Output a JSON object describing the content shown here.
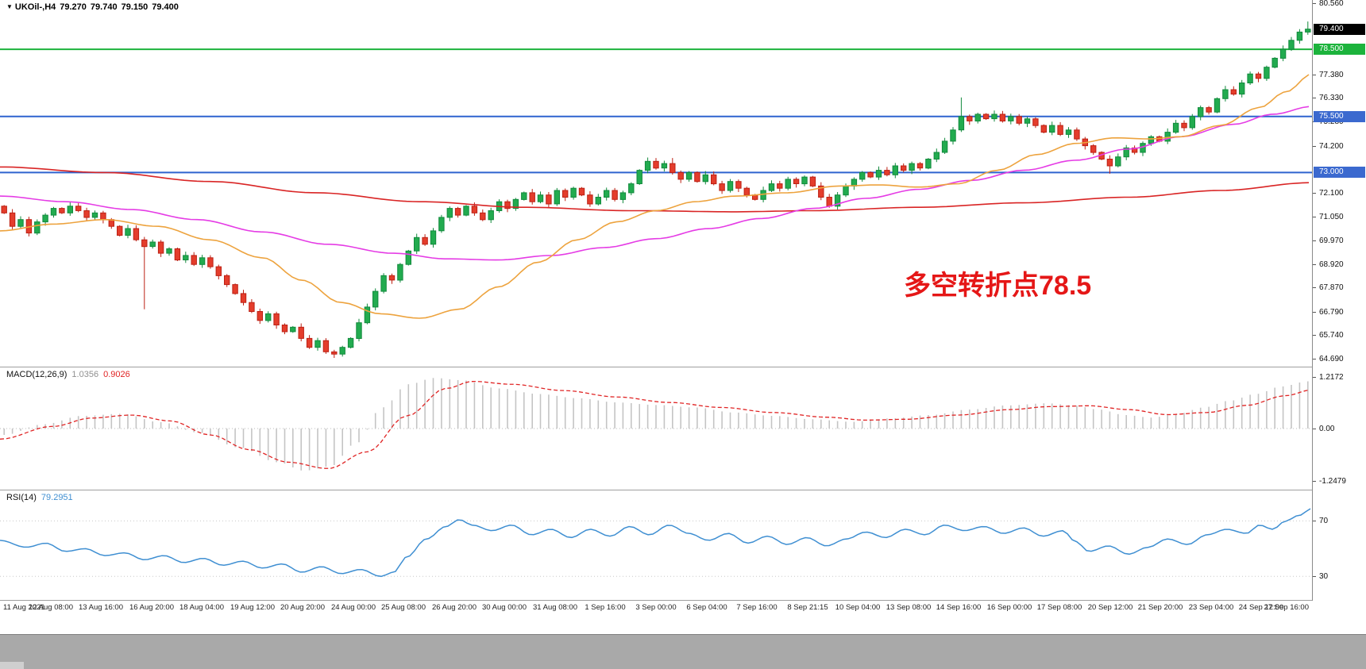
{
  "icons": {
    "symbol_dropdown": "▼"
  },
  "quote_bar": {
    "symbol_period": "UKOil-,H4",
    "open": "79.270",
    "high": "79.740",
    "low": "79.150",
    "close": "79.400"
  },
  "annotation": {
    "text": "多空转折点78.5"
  },
  "colors": {
    "background": "#ffffff",
    "bull": "#128a3c",
    "bull_fill": "#22ab4f",
    "bear": "#bc2013",
    "bear_fill": "#e43d2c",
    "hline_green": "#1cb33c",
    "hline_blue": "#2e63cf",
    "label_black_bg": "#000000",
    "label_green_bg": "#1cb33c",
    "label_blue_bg": "#3b69cf",
    "ma_fast": "#eda33e",
    "ma_mid": "#e53ce5",
    "ma_slow": "#d92525",
    "macd_hist": "#c4c4c4",
    "macd_signal": "#e02424",
    "rsi_line": "#3f8fd2",
    "axis_text": "#111111",
    "annotation": "#e51717"
  },
  "chart_data": [
    {
      "type": "candlestick",
      "title": "UKOil-,H4",
      "ylim": [
        64.34,
        80.7
      ],
      "first_open": 71.5,
      "closes": [
        71.2,
        70.6,
        70.9,
        70.3,
        70.8,
        71.1,
        71.4,
        71.2,
        71.5,
        71.3,
        71.0,
        71.2,
        70.9,
        70.6,
        70.2,
        70.5,
        70.0,
        69.7,
        69.9,
        69.4,
        69.6,
        69.1,
        69.3,
        68.9,
        69.2,
        68.8,
        68.4,
        68.0,
        67.6,
        67.2,
        66.8,
        66.4,
        66.7,
        66.2,
        65.9,
        66.1,
        65.6,
        65.2,
        65.5,
        65.0,
        64.9,
        65.2,
        65.6,
        66.3,
        67.0,
        67.7,
        68.4,
        68.2,
        68.9,
        69.5,
        70.1,
        69.8,
        70.4,
        71.0,
        71.4,
        71.1,
        71.5,
        71.2,
        70.9,
        71.3,
        71.7,
        71.4,
        71.8,
        72.1,
        71.7,
        72.0,
        71.6,
        72.2,
        71.9,
        72.3,
        72.0,
        71.6,
        71.9,
        72.2,
        71.8,
        72.1,
        72.5,
        73.1,
        73.5,
        73.2,
        73.4,
        73.0,
        72.7,
        73.0,
        72.6,
        72.9,
        72.5,
        72.2,
        72.6,
        72.3,
        72.0,
        71.8,
        72.2,
        72.5,
        72.3,
        72.7,
        72.5,
        72.8,
        72.4,
        71.9,
        71.5,
        72.0,
        72.4,
        72.7,
        73.0,
        72.8,
        73.1,
        72.9,
        73.3,
        73.1,
        73.4,
        73.2,
        73.6,
        73.9,
        74.4,
        74.9,
        75.5,
        75.3,
        75.6,
        75.4,
        75.6,
        75.3,
        75.5,
        75.2,
        75.4,
        75.1,
        74.8,
        75.1,
        74.7,
        74.9,
        74.5,
        74.2,
        73.9,
        73.6,
        73.3,
        73.7,
        74.1,
        73.9,
        74.3,
        74.6,
        74.4,
        74.8,
        75.2,
        75.0,
        75.5,
        75.9,
        75.7,
        76.3,
        76.7,
        76.5,
        77.0,
        77.4,
        77.2,
        77.7,
        78.1,
        78.5,
        78.9,
        79.27,
        79.4
      ],
      "last_bar": [
        79.27,
        79.74,
        79.15,
        79.4
      ],
      "wick_overrides": {
        "17": [
          null,
          66.9
        ],
        "81": [
          73.65,
          null
        ],
        "116": [
          76.35,
          null
        ],
        "134": [
          null,
          72.95
        ]
      },
      "x_labels": [
        "11 Aug 2021",
        "12 Aug 08:00",
        "13 Aug 16:00",
        "16 Aug 20:00",
        "18 Aug 04:00",
        "19 Aug 12:00",
        "20 Aug 20:00",
        "24 Aug 00:00",
        "25 Aug 08:00",
        "26 Aug 20:00",
        "30 Aug 00:00",
        "31 Aug 08:00",
        "1 Sep 16:00",
        "3 Sep 00:00",
        "6 Sep 04:00",
        "7 Sep 16:00",
        "8 Sep 21:15",
        "10 Sep 04:00",
        "13 Sep 08:00",
        "14 Sep 16:00",
        "16 Sep 00:00",
        "17 Sep 08:00",
        "20 Sep 12:00",
        "21 Sep 20:00",
        "23 Sep 04:00",
        "24 Sep 12:00",
        "27 Sep 16:00"
      ],
      "y_ticks": [
        [
          80.56,
          "80.560"
        ],
        [
          77.38,
          "77.380"
        ],
        [
          76.33,
          "76.330"
        ],
        [
          75.28,
          "75.280"
        ],
        [
          74.2,
          "74.200"
        ],
        [
          72.1,
          "72.100"
        ],
        [
          71.05,
          "71.050"
        ],
        [
          69.97,
          "69.970"
        ],
        [
          68.92,
          "68.920"
        ],
        [
          67.87,
          "67.870"
        ],
        [
          66.79,
          "66.790"
        ],
        [
          65.74,
          "65.740"
        ],
        [
          64.69,
          "64.690"
        ]
      ],
      "y_ticks_highlight": [
        [
          79.4,
          "79.400",
          "black"
        ],
        [
          78.5,
          "78.500",
          "green"
        ],
        [
          75.5,
          "75.500",
          "blue"
        ],
        [
          73.0,
          "73.000",
          "blue"
        ]
      ],
      "hlines": [
        [
          78.5,
          "green"
        ],
        [
          75.5,
          "blue"
        ],
        [
          73.0,
          "blue"
        ]
      ],
      "overlays": [
        {
          "name": "ma-slow-red",
          "color": "#d92525",
          "points": [
            [
              0,
              73.25
            ],
            [
              0.08,
              73.0
            ],
            [
              0.16,
              72.6
            ],
            [
              0.24,
              72.1
            ],
            [
              0.32,
              71.7
            ],
            [
              0.4,
              71.45
            ],
            [
              0.48,
              71.3
            ],
            [
              0.56,
              71.25
            ],
            [
              0.62,
              71.3
            ],
            [
              0.7,
              71.45
            ],
            [
              0.78,
              71.65
            ],
            [
              0.86,
              71.9
            ],
            [
              0.93,
              72.2
            ],
            [
              1,
              72.55
            ]
          ]
        },
        {
          "name": "ma-mid-magenta",
          "color": "#e53ce5",
          "points": [
            [
              0,
              71.95
            ],
            [
              0.05,
              71.7
            ],
            [
              0.1,
              71.35
            ],
            [
              0.15,
              70.9
            ],
            [
              0.2,
              70.35
            ],
            [
              0.25,
              69.8
            ],
            [
              0.3,
              69.4
            ],
            [
              0.34,
              69.15
            ],
            [
              0.38,
              69.1
            ],
            [
              0.42,
              69.3
            ],
            [
              0.46,
              69.65
            ],
            [
              0.5,
              70.05
            ],
            [
              0.54,
              70.5
            ],
            [
              0.58,
              70.95
            ],
            [
              0.62,
              71.4
            ],
            [
              0.66,
              71.85
            ],
            [
              0.7,
              72.25
            ],
            [
              0.74,
              72.65
            ],
            [
              0.78,
              73.1
            ],
            [
              0.82,
              73.55
            ],
            [
              0.86,
              74.05
            ],
            [
              0.9,
              74.6
            ],
            [
              0.94,
              75.15
            ],
            [
              0.97,
              75.6
            ],
            [
              1,
              75.95
            ]
          ]
        },
        {
          "name": "ma-fast-orange",
          "color": "#eda33e",
          "points": [
            [
              0,
              70.4
            ],
            [
              0.04,
              70.7
            ],
            [
              0.08,
              70.9
            ],
            [
              0.12,
              70.6
            ],
            [
              0.16,
              70.0
            ],
            [
              0.2,
              69.2
            ],
            [
              0.23,
              68.2
            ],
            [
              0.26,
              67.2
            ],
            [
              0.29,
              66.7
            ],
            [
              0.32,
              66.5
            ],
            [
              0.35,
              66.9
            ],
            [
              0.38,
              67.9
            ],
            [
              0.41,
              69.0
            ],
            [
              0.44,
              70.0
            ],
            [
              0.47,
              70.8
            ],
            [
              0.5,
              71.3
            ],
            [
              0.53,
              71.7
            ],
            [
              0.56,
              71.95
            ],
            [
              0.6,
              72.1
            ],
            [
              0.64,
              72.4
            ],
            [
              0.67,
              72.45
            ],
            [
              0.7,
              72.35
            ],
            [
              0.73,
              72.5
            ],
            [
              0.76,
              73.1
            ],
            [
              0.79,
              73.8
            ],
            [
              0.82,
              74.3
            ],
            [
              0.85,
              74.55
            ],
            [
              0.875,
              74.5
            ],
            [
              0.9,
              74.6
            ],
            [
              0.93,
              75.1
            ],
            [
              0.96,
              75.9
            ],
            [
              0.98,
              76.6
            ],
            [
              1,
              77.4
            ]
          ]
        }
      ]
    },
    {
      "type": "bar",
      "name": "MACD",
      "label": "MACD(12,26,9)",
      "value_main": "1.0356",
      "value_signal": "0.9026",
      "ylim": [
        -1.45,
        1.45
      ],
      "y_ticks": [
        [
          1.2172,
          "1.2172"
        ],
        [
          0,
          "0.00"
        ],
        [
          -1.2479,
          "-1.2479"
        ]
      ],
      "histogram_points": [
        [
          0,
          -0.15
        ],
        [
          0.03,
          0.1
        ],
        [
          0.06,
          0.3
        ],
        [
          0.09,
          0.35
        ],
        [
          0.12,
          0.15
        ],
        [
          0.15,
          -0.1
        ],
        [
          0.18,
          -0.45
        ],
        [
          0.21,
          -0.8
        ],
        [
          0.23,
          -1.0
        ],
        [
          0.25,
          -0.9
        ],
        [
          0.27,
          -0.35
        ],
        [
          0.29,
          0.5
        ],
        [
          0.31,
          1.05
        ],
        [
          0.33,
          1.2
        ],
        [
          0.35,
          1.15
        ],
        [
          0.38,
          0.95
        ],
        [
          0.41,
          0.82
        ],
        [
          0.44,
          0.72
        ],
        [
          0.47,
          0.62
        ],
        [
          0.5,
          0.56
        ],
        [
          0.53,
          0.5
        ],
        [
          0.56,
          0.38
        ],
        [
          0.59,
          0.3
        ],
        [
          0.62,
          0.22
        ],
        [
          0.65,
          0.16
        ],
        [
          0.68,
          0.24
        ],
        [
          0.71,
          0.32
        ],
        [
          0.74,
          0.45
        ],
        [
          0.77,
          0.55
        ],
        [
          0.8,
          0.6
        ],
        [
          0.82,
          0.55
        ],
        [
          0.84,
          0.45
        ],
        [
          0.86,
          0.32
        ],
        [
          0.88,
          0.26
        ],
        [
          0.9,
          0.35
        ],
        [
          0.92,
          0.5
        ],
        [
          0.94,
          0.66
        ],
        [
          0.96,
          0.82
        ],
        [
          0.98,
          1.0
        ],
        [
          1,
          1.12
        ]
      ],
      "signal_points": [
        [
          0,
          -0.25
        ],
        [
          0.04,
          0.05
        ],
        [
          0.07,
          0.25
        ],
        [
          0.1,
          0.32
        ],
        [
          0.13,
          0.18
        ],
        [
          0.16,
          -0.15
        ],
        [
          0.19,
          -0.5
        ],
        [
          0.22,
          -0.8
        ],
        [
          0.25,
          -0.95
        ],
        [
          0.28,
          -0.55
        ],
        [
          0.31,
          0.3
        ],
        [
          0.34,
          0.95
        ],
        [
          0.36,
          1.12
        ],
        [
          0.39,
          1.05
        ],
        [
          0.43,
          0.9
        ],
        [
          0.47,
          0.75
        ],
        [
          0.51,
          0.62
        ],
        [
          0.55,
          0.5
        ],
        [
          0.59,
          0.38
        ],
        [
          0.63,
          0.27
        ],
        [
          0.66,
          0.2
        ],
        [
          0.69,
          0.22
        ],
        [
          0.73,
          0.32
        ],
        [
          0.77,
          0.45
        ],
        [
          0.8,
          0.52
        ],
        [
          0.83,
          0.54
        ],
        [
          0.86,
          0.45
        ],
        [
          0.89,
          0.33
        ],
        [
          0.92,
          0.38
        ],
        [
          0.95,
          0.55
        ],
        [
          0.98,
          0.78
        ],
        [
          1,
          0.92
        ]
      ]
    },
    {
      "type": "line",
      "name": "RSI",
      "label": "RSI(14)",
      "value": "79.2951",
      "ylim": [
        13,
        92
      ],
      "levels": [
        [
          70,
          "70"
        ],
        [
          30,
          "30"
        ]
      ],
      "points": [
        [
          0,
          56
        ],
        [
          0.02,
          51
        ],
        [
          0.035,
          54
        ],
        [
          0.05,
          48
        ],
        [
          0.065,
          50
        ],
        [
          0.08,
          45
        ],
        [
          0.095,
          47
        ],
        [
          0.11,
          42
        ],
        [
          0.125,
          45
        ],
        [
          0.14,
          40
        ],
        [
          0.155,
          43
        ],
        [
          0.17,
          38
        ],
        [
          0.185,
          41
        ],
        [
          0.2,
          36
        ],
        [
          0.215,
          39
        ],
        [
          0.23,
          33
        ],
        [
          0.245,
          37
        ],
        [
          0.26,
          32
        ],
        [
          0.275,
          35
        ],
        [
          0.29,
          30
        ],
        [
          0.3,
          33
        ],
        [
          0.31,
          44
        ],
        [
          0.325,
          57
        ],
        [
          0.34,
          66
        ],
        [
          0.35,
          71
        ],
        [
          0.36,
          67
        ],
        [
          0.375,
          63
        ],
        [
          0.39,
          67
        ],
        [
          0.405,
          60
        ],
        [
          0.42,
          64
        ],
        [
          0.435,
          58
        ],
        [
          0.45,
          64
        ],
        [
          0.465,
          59
        ],
        [
          0.48,
          66
        ],
        [
          0.495,
          60
        ],
        [
          0.51,
          67
        ],
        [
          0.525,
          61
        ],
        [
          0.54,
          56
        ],
        [
          0.555,
          61
        ],
        [
          0.57,
          54
        ],
        [
          0.585,
          59
        ],
        [
          0.6,
          53
        ],
        [
          0.615,
          58
        ],
        [
          0.63,
          52
        ],
        [
          0.645,
          57
        ],
        [
          0.66,
          62
        ],
        [
          0.675,
          58
        ],
        [
          0.69,
          64
        ],
        [
          0.705,
          60
        ],
        [
          0.72,
          67
        ],
        [
          0.735,
          63
        ],
        [
          0.75,
          66
        ],
        [
          0.765,
          61
        ],
        [
          0.78,
          65
        ],
        [
          0.795,
          59
        ],
        [
          0.81,
          63
        ],
        [
          0.82,
          55
        ],
        [
          0.83,
          48
        ],
        [
          0.845,
          52
        ],
        [
          0.86,
          46
        ],
        [
          0.875,
          51
        ],
        [
          0.89,
          57
        ],
        [
          0.905,
          53
        ],
        [
          0.92,
          60
        ],
        [
          0.935,
          64
        ],
        [
          0.95,
          61
        ],
        [
          0.96,
          67
        ],
        [
          0.97,
          64
        ],
        [
          0.98,
          70
        ],
        [
          0.99,
          74
        ],
        [
          1,
          79
        ]
      ]
    }
  ]
}
